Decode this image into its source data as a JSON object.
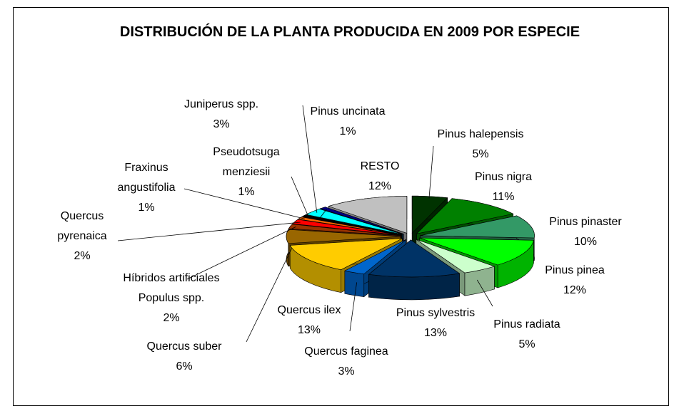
{
  "chart_data": {
    "type": "pie3d",
    "title": "DISTRIBUCIÓN DE LA PLANTA PRODUCIDA EN 2009 POR ESPECIE",
    "categories": [
      "Pinus halepensis",
      "Pinus nigra",
      "Pinus pinaster",
      "Pinus pinea",
      "Pinus radiata",
      "Pinus sylvestris",
      "Quercus faginea",
      "Quercus ilex",
      "Quercus suber",
      "Híbridos artificiales Populus spp.",
      "Quercus pyrenaica",
      "Fraxinus angustifolia",
      "Pseudotsuga menziesii",
      "Juniperus spp.",
      "Pinus uncinata",
      "RESTO"
    ],
    "values": [
      5,
      11,
      10,
      12,
      5,
      13,
      3,
      13,
      6,
      2,
      2,
      1,
      1,
      3,
      1,
      12
    ],
    "value_labels": [
      "5%",
      "11%",
      "10%",
      "12%",
      "5%",
      "13%",
      "3%",
      "13%",
      "6%",
      "2%",
      "2%",
      "1%",
      "1%",
      "3%",
      "1%",
      "12%"
    ],
    "colors": [
      "#003300",
      "#008000",
      "#339966",
      "#00ff00",
      "#ccffcc",
      "#003366",
      "#0066cc",
      "#ffcc00",
      "#996600",
      "#993300",
      "#ff0000",
      "#ff6600",
      "#000000",
      "#00ffff",
      "#000080",
      "#c0c0c0"
    ]
  }
}
